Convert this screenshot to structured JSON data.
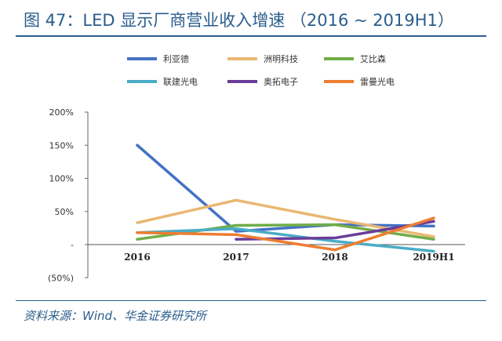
{
  "header": {
    "title": "图 47：LED 显示厂商营业收入增速 （2016 ~ 2019H1）"
  },
  "footer": {
    "source": "资料来源：Wind、华金证券研究所"
  },
  "chart_data": {
    "type": "line",
    "title": "LED 显示厂商营业收入增速 （2016 ~ 2019H1）",
    "xlabel": "",
    "ylabel": "",
    "categories": [
      "2016",
      "2017",
      "2018",
      "2019H1"
    ],
    "y_ticks": [
      "200%",
      "150%",
      "100%",
      "50%",
      "-",
      "(50%)"
    ],
    "y_tick_values": [
      200,
      150,
      100,
      50,
      0,
      -50
    ],
    "ylim": [
      -50,
      200
    ],
    "legend_position": "top",
    "series": [
      {
        "name": "利亚德",
        "color": "#4472C4",
        "values": [
          150,
          20,
          30,
          28
        ]
      },
      {
        "name": "洲明科技",
        "color": "#E9B872",
        "values": [
          33,
          67,
          38,
          12
        ]
      },
      {
        "name": "艾比森",
        "color": "#70AD47",
        "values": [
          8,
          29,
          30,
          8
        ]
      },
      {
        "name": "联建光电",
        "color": "#4BACC6",
        "values": [
          18,
          24,
          5,
          -10
        ]
      },
      {
        "name": "奥拓电子",
        "color": "#6A3D9A",
        "values": [
          null,
          8,
          10,
          35
        ]
      },
      {
        "name": "雷曼光电",
        "color": "#ED7D31",
        "values": [
          18,
          15,
          -8,
          40
        ]
      }
    ]
  }
}
